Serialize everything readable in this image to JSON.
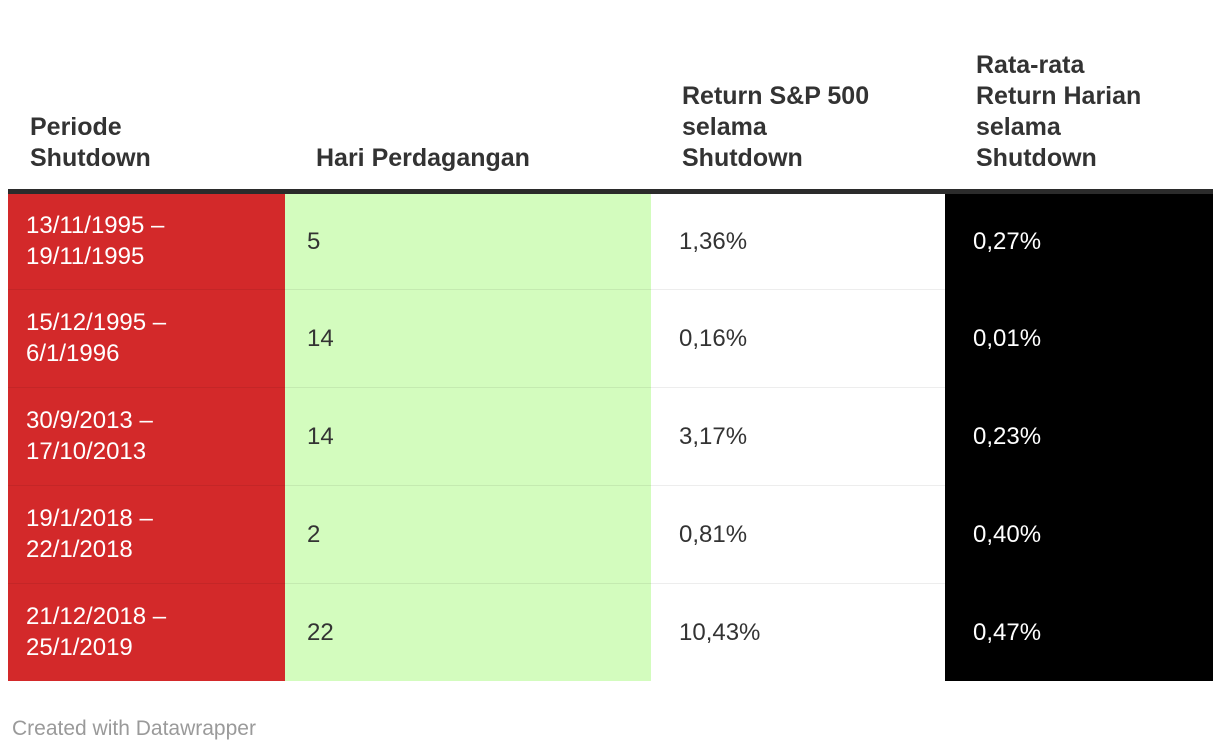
{
  "colors": {
    "periode_bg": "#d3292a",
    "hari_bg": "#d3fcbe",
    "return_bg": "#ffffff",
    "rata_bg": "#000000",
    "header_text": "#333333",
    "header_border": "#2b2b2b",
    "row_text_light": "#ffffff",
    "row_text_dark": "#333333",
    "footer_text": "#9a9a9a"
  },
  "table": {
    "columns": [
      {
        "id": "periode",
        "label": [
          "Periode",
          "Shutdown"
        ]
      },
      {
        "id": "hari",
        "label": [
          "Hari Perdagangan"
        ]
      },
      {
        "id": "return",
        "label": [
          "Return S&P 500",
          "selama",
          "Shutdown"
        ]
      },
      {
        "id": "rata",
        "label": [
          "Rata-rata",
          "Return Harian",
          "selama",
          "Shutdown"
        ]
      }
    ],
    "rows": [
      {
        "periode": [
          "13/11/1995 –",
          "19/11/1995"
        ],
        "hari": "5",
        "return_sp500": "1,36%",
        "rata_rata": "0,27%"
      },
      {
        "periode": [
          "15/12/1995 –",
          "6/1/1996"
        ],
        "hari": "14",
        "return_sp500": "0,16%",
        "rata_rata": "0,01%"
      },
      {
        "periode": [
          "30/9/2013 –",
          "17/10/2013"
        ],
        "hari": "14",
        "return_sp500": "3,17%",
        "rata_rata": "0,23%"
      },
      {
        "periode": [
          "19/1/2018 –",
          "22/1/2018"
        ],
        "hari": "2",
        "return_sp500": "0,81%",
        "rata_rata": "0,40%"
      },
      {
        "periode": [
          "21/12/2018 –",
          "25/1/2019"
        ],
        "hari": "22",
        "return_sp500": "10,43%",
        "rata_rata": "0,47%"
      }
    ]
  },
  "footer": {
    "credit": "Created with Datawrapper"
  },
  "chart_data": {
    "type": "table",
    "title": "",
    "columns": [
      "Periode Shutdown",
      "Hari Perdagangan",
      "Return S&P 500 selama Shutdown",
      "Rata-rata Return Harian selama Shutdown"
    ],
    "rows": [
      [
        "13/11/1995 – 19/11/1995",
        5,
        "1,36%",
        "0,27%"
      ],
      [
        "15/12/1995 – 6/1/1996",
        14,
        "0,16%",
        "0,01%"
      ],
      [
        "30/9/2013 – 17/10/2013",
        14,
        "3,17%",
        "0,23%"
      ],
      [
        "19/1/2018 – 22/1/2018",
        2,
        "0,81%",
        "0,40%"
      ],
      [
        "21/12/2018 – 25/1/2019",
        22,
        "10,43%",
        "0,47%"
      ]
    ]
  }
}
